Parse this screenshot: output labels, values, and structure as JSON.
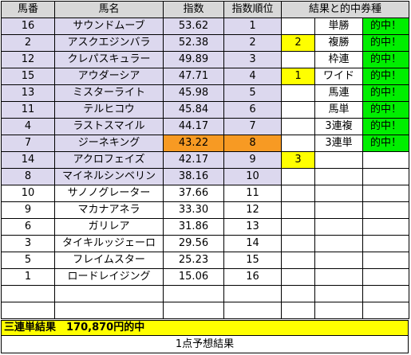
{
  "headers": {
    "horse_no": "馬番",
    "horse_name": "馬名",
    "index": "指数",
    "index_rank": "指数順位",
    "result": "結果と的中券種"
  },
  "rows": [
    {
      "no": "16",
      "name": "サウンドムーブ",
      "index": "53.62",
      "rank": "1",
      "res": "",
      "bet": "単勝",
      "hit": "的中！"
    },
    {
      "no": "2",
      "name": "アスクエジンバラ",
      "index": "52.38",
      "rank": "2",
      "res": "2",
      "bet": "複勝",
      "hit": "的中！"
    },
    {
      "no": "12",
      "name": "クレパスキュラー",
      "index": "49.89",
      "rank": "3",
      "res": "",
      "bet": "枠連",
      "hit": "的中！"
    },
    {
      "no": "15",
      "name": "アウダーシア",
      "index": "47.71",
      "rank": "4",
      "res": "1",
      "bet": "ワイド",
      "hit": "的中！"
    },
    {
      "no": "13",
      "name": "ミスターライト",
      "index": "45.98",
      "rank": "5",
      "res": "",
      "bet": "馬連",
      "hit": "的中！"
    },
    {
      "no": "11",
      "name": "テルヒコウ",
      "index": "45.84",
      "rank": "6",
      "res": "",
      "bet": "馬単",
      "hit": "的中！"
    },
    {
      "no": "4",
      "name": "ラストスマイル",
      "index": "44.17",
      "rank": "7",
      "res": "",
      "bet": "3連複",
      "hit": "的中！"
    },
    {
      "no": "7",
      "name": "ジーネキング",
      "index": "43.22",
      "rank": "8",
      "res": "",
      "bet": "3連単",
      "hit": "的中！"
    },
    {
      "no": "14",
      "name": "アクロフェイズ",
      "index": "42.17",
      "rank": "9",
      "res": "3",
      "bet": "",
      "hit": ""
    },
    {
      "no": "8",
      "name": "マイネルシンベリン",
      "index": "38.16",
      "rank": "10",
      "res": "",
      "bet": "",
      "hit": ""
    },
    {
      "no": "10",
      "name": "サノノグレーター",
      "index": "37.66",
      "rank": "11",
      "res": "",
      "bet": "",
      "hit": ""
    },
    {
      "no": "9",
      "name": "マカナアネラ",
      "index": "33.30",
      "rank": "12",
      "res": "",
      "bet": "",
      "hit": ""
    },
    {
      "no": "6",
      "name": "ガリレア",
      "index": "31.86",
      "rank": "13",
      "res": "",
      "bet": "",
      "hit": ""
    },
    {
      "no": "3",
      "name": "タイキルッジェーロ",
      "index": "29.56",
      "rank": "14",
      "res": "",
      "bet": "",
      "hit": ""
    },
    {
      "no": "5",
      "name": "フレイムスター",
      "index": "25.23",
      "rank": "15",
      "res": "",
      "bet": "",
      "hit": ""
    },
    {
      "no": "1",
      "name": "ロードレイジング",
      "index": "15.06",
      "rank": "16",
      "res": "",
      "bet": "",
      "hit": ""
    }
  ],
  "summary": "三連単結果　170,870円的中",
  "footer": "1点予想結果",
  "colors": {
    "lavender": "#dcd8ee",
    "orange": "#f79a23",
    "yellow": "#ffff00",
    "green": "#00ee00",
    "header": "#d8d8d8"
  }
}
